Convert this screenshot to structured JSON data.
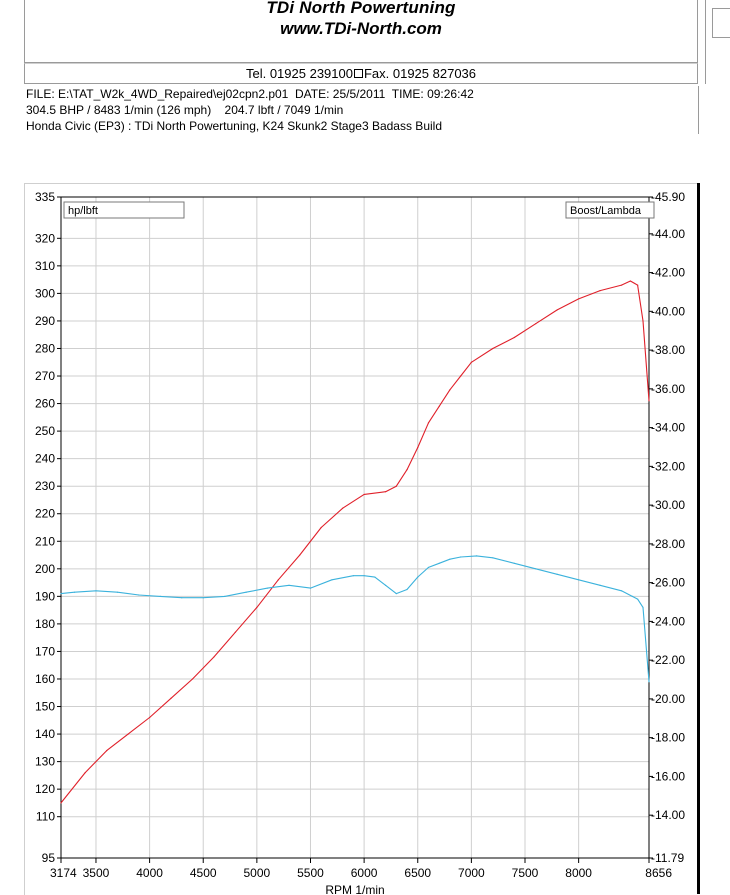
{
  "header": {
    "title": "TDi North Powertuning",
    "url": "www.TDi-North.com",
    "tel": "Tel. 01925 239100",
    "fax": "Fax. 01925 827036"
  },
  "info": {
    "line1": "FILE: E:\\TAT_W2k_4WD_Repaired\\ej02cpn2.p01  DATE: 25/5/2011  TIME: 09:26:42",
    "line2": "304.5 BHP / 8483 1/min (126 mph)    204.7 lbft / 7049 1/min",
    "line3": "Honda Civic (EP3) : TDi North Powertuning, K24 Skunk2 Stage3 Badass Build"
  },
  "chart_data": {
    "type": "line",
    "left_axis_label": "hp/lbft",
    "right_axis_label": "Boost/Lambda",
    "xlabel": "RPM  1/min",
    "xlim": [
      3174,
      8656
    ],
    "ylim_left": [
      95,
      335
    ],
    "ylim_right": [
      11.79,
      45.9
    ],
    "x_ticks": [
      "3174",
      "3500",
      "4000",
      "4500",
      "5000",
      "5500",
      "6000",
      "6500",
      "7000",
      "7500",
      "8000",
      "8656"
    ],
    "y_left_ticks": [
      "335",
      "320",
      "310",
      "300",
      "290",
      "280",
      "270",
      "260",
      "250",
      "240",
      "230",
      "220",
      "210",
      "200",
      "190",
      "180",
      "170",
      "160",
      "150",
      "140",
      "130",
      "120",
      "110",
      "95"
    ],
    "y_right_ticks": [
      "45.90",
      "44.00",
      "42.00",
      "40.00",
      "38.00",
      "36.00",
      "34.00",
      "32.00",
      "30.00",
      "28.00",
      "26.00",
      "24.00",
      "22.00",
      "20.00",
      "18.00",
      "16.00",
      "14.00",
      "11.79"
    ],
    "grid": true,
    "series": [
      {
        "color": "#e0202a",
        "axis": "left",
        "x": [
          3174,
          3400,
          3600,
          3800,
          4000,
          4200,
          4400,
          4600,
          4800,
          5000,
          5200,
          5400,
          5600,
          5800,
          6000,
          6200,
          6300,
          6400,
          6500,
          6600,
          6700,
          6800,
          6900,
          7000,
          7200,
          7400,
          7600,
          7800,
          8000,
          8200,
          8400,
          8483,
          8550,
          8600,
          8656
        ],
        "values": [
          115,
          126,
          134,
          140,
          146,
          153,
          160,
          168,
          177,
          186,
          196,
          205,
          215,
          222,
          227,
          228,
          230,
          236,
          244,
          253,
          259,
          265,
          270,
          275,
          280,
          284,
          289,
          294,
          298,
          301,
          303,
          304.5,
          303,
          290,
          261
        ]
      },
      {
        "color": "#3bb2dc",
        "axis": "left",
        "x": [
          3174,
          3300,
          3500,
          3700,
          3900,
          4100,
          4300,
          4500,
          4700,
          4900,
          5100,
          5300,
          5500,
          5700,
          5900,
          6000,
          6100,
          6200,
          6300,
          6400,
          6500,
          6600,
          6700,
          6800,
          6900,
          7049,
          7200,
          7400,
          7600,
          7800,
          8000,
          8200,
          8400,
          8500,
          8550,
          8600,
          8656
        ],
        "values": [
          191,
          191.5,
          192,
          191.5,
          190.5,
          190,
          189.5,
          189.5,
          190,
          191.5,
          193,
          194,
          193,
          196,
          197.5,
          197.5,
          197,
          194,
          191,
          192.5,
          197,
          200.5,
          202,
          203.5,
          204.3,
          204.7,
          204,
          202,
          200,
          198,
          196,
          194,
          192,
          190,
          189,
          186,
          159
        ]
      }
    ]
  }
}
